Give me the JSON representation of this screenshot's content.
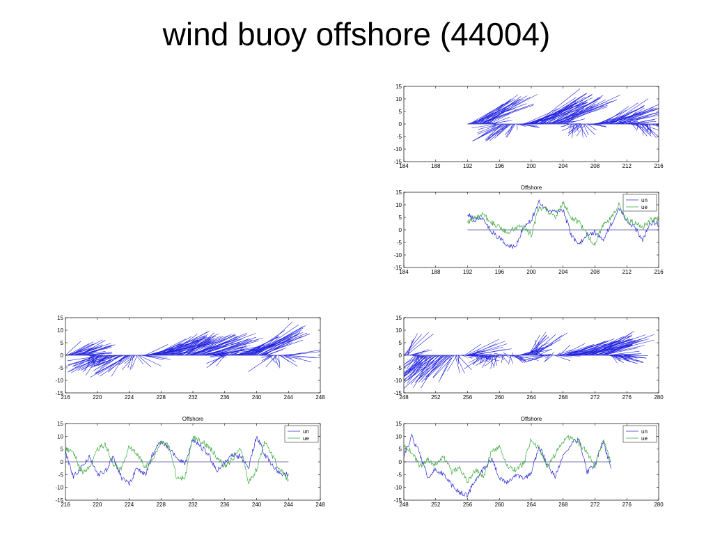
{
  "slide": {
    "title": "wind buoy offshore (44004)"
  },
  "colors": {
    "un": "#2b2bd6",
    "ue": "#3aa83a",
    "stick": "#1f1fe0",
    "axis": "#000000",
    "zero": "#4a4a9a"
  },
  "chart_data": [
    {
      "id": "stick-184-216",
      "type": "line",
      "subtype": "wind-stick",
      "title": "",
      "xlim": [
        184,
        216
      ],
      "ylim": [
        -15,
        15
      ],
      "xticks": [
        184,
        188,
        192,
        196,
        200,
        204,
        208,
        212,
        216
      ],
      "yticks": [
        15,
        10,
        5,
        0,
        -5,
        -10,
        -15
      ],
      "data_range": [
        192,
        216
      ],
      "anchors": [
        [
          192,
          8,
          10
        ],
        [
          194,
          10,
          10
        ],
        [
          196,
          -4,
          -6
        ],
        [
          197.5,
          -7,
          -5
        ],
        [
          199,
          4,
          10
        ],
        [
          200.5,
          12,
          12
        ],
        [
          202,
          8,
          10
        ],
        [
          203.5,
          10,
          12
        ],
        [
          205,
          -3,
          -2
        ],
        [
          206.5,
          -4,
          0
        ],
        [
          208,
          2,
          5
        ],
        [
          210,
          8,
          10
        ],
        [
          212,
          1,
          4
        ],
        [
          214,
          -5,
          2
        ],
        [
          216,
          1,
          3
        ]
      ]
    },
    {
      "id": "series-184-216",
      "type": "line",
      "title": "Offshore",
      "xlim": [
        184,
        216
      ],
      "ylim": [
        -15,
        15
      ],
      "xticks": [
        184,
        188,
        192,
        196,
        200,
        204,
        208,
        212,
        216
      ],
      "yticks": [
        15,
        10,
        5,
        0,
        -5,
        -10,
        -15
      ],
      "legend": {
        "position": "top-right",
        "entries": [
          "un",
          "ue"
        ]
      },
      "data_range": [
        192,
        216
      ],
      "series": [
        {
          "name": "un",
          "color_key": "un",
          "points": [
            [
              192,
              6
            ],
            [
              193,
              4
            ],
            [
              194,
              5
            ],
            [
              195,
              -1
            ],
            [
              196,
              -3
            ],
            [
              197,
              -6
            ],
            [
              198,
              -7
            ],
            [
              199,
              1
            ],
            [
              200,
              4
            ],
            [
              201,
              11
            ],
            [
              202,
              8
            ],
            [
              203,
              7
            ],
            [
              204,
              8
            ],
            [
              205,
              -2
            ],
            [
              206,
              -6
            ],
            [
              207,
              -2
            ],
            [
              208,
              -1
            ],
            [
              209,
              -4
            ],
            [
              210,
              2
            ],
            [
              211,
              9
            ],
            [
              212,
              4
            ],
            [
              213,
              1
            ],
            [
              214,
              -4
            ],
            [
              215,
              3
            ],
            [
              216,
              2
            ]
          ]
        },
        {
          "name": "ue",
          "color_key": "ue",
          "points": [
            [
              192,
              3
            ],
            [
              193,
              5
            ],
            [
              194,
              6
            ],
            [
              195,
              3
            ],
            [
              196,
              1
            ],
            [
              197,
              -1
            ],
            [
              198,
              1
            ],
            [
              199,
              1
            ],
            [
              200,
              -2
            ],
            [
              201,
              9
            ],
            [
              202,
              8
            ],
            [
              203,
              5
            ],
            [
              204,
              11
            ],
            [
              205,
              5
            ],
            [
              206,
              3
            ],
            [
              207,
              -2
            ],
            [
              208,
              -6
            ],
            [
              209,
              2
            ],
            [
              210,
              5
            ],
            [
              211,
              10
            ],
            [
              212,
              4
            ],
            [
              213,
              3
            ],
            [
              214,
              1
            ],
            [
              215,
              4
            ],
            [
              216,
              4
            ]
          ]
        }
      ]
    },
    {
      "id": "stick-216-248",
      "type": "line",
      "subtype": "wind-stick",
      "title": "",
      "xlim": [
        216,
        248
      ],
      "ylim": [
        -15,
        15
      ],
      "xticks": [
        216,
        220,
        224,
        228,
        232,
        236,
        240,
        244,
        248
      ],
      "yticks": [
        15,
        10,
        5,
        0,
        -5,
        -10,
        -15
      ],
      "data_range": [
        216,
        244
      ],
      "anchors": [
        [
          216,
          5,
          4
        ],
        [
          218,
          4,
          8
        ],
        [
          220,
          -6,
          -6
        ],
        [
          222,
          -3,
          -5
        ],
        [
          224,
          -8,
          -6
        ],
        [
          226,
          2,
          8
        ],
        [
          228,
          8,
          10
        ],
        [
          230,
          6,
          8
        ],
        [
          232,
          7,
          10
        ],
        [
          234,
          5,
          12
        ],
        [
          236,
          -3,
          -4
        ],
        [
          238,
          6,
          10
        ],
        [
          240,
          11,
          10
        ],
        [
          242,
          -5,
          -3
        ],
        [
          244,
          1,
          8
        ]
      ]
    },
    {
      "id": "series-216-248",
      "type": "line",
      "title": "Offshore",
      "xlim": [
        216,
        248
      ],
      "ylim": [
        -15,
        15
      ],
      "xticks": [
        216,
        220,
        224,
        228,
        232,
        236,
        240,
        244,
        248
      ],
      "yticks": [
        15,
        10,
        5,
        0,
        -5,
        -10,
        -15
      ],
      "legend": {
        "position": "top-right",
        "entries": [
          "un",
          "ue"
        ]
      },
      "data_range": [
        216,
        244
      ],
      "series": [
        {
          "name": "un",
          "color_key": "un",
          "points": [
            [
              216,
              4
            ],
            [
              217,
              -6
            ],
            [
              218,
              -2
            ],
            [
              219,
              2
            ],
            [
              220,
              -5
            ],
            [
              221,
              -4
            ],
            [
              222,
              2
            ],
            [
              223,
              -6
            ],
            [
              224,
              -9
            ],
            [
              225,
              -2
            ],
            [
              226,
              -5
            ],
            [
              227,
              3
            ],
            [
              228,
              8
            ],
            [
              229,
              5
            ],
            [
              230,
              2
            ],
            [
              231,
              -1
            ],
            [
              232,
              9
            ],
            [
              233,
              6
            ],
            [
              234,
              3
            ],
            [
              235,
              -4
            ],
            [
              236,
              0
            ],
            [
              237,
              3
            ],
            [
              238,
              2
            ],
            [
              239,
              -2
            ],
            [
              240,
              10
            ],
            [
              241,
              3
            ],
            [
              242,
              -1
            ],
            [
              243,
              -5
            ],
            [
              244,
              -5
            ]
          ]
        },
        {
          "name": "ue",
          "color_key": "ue",
          "points": [
            [
              216,
              5
            ],
            [
              217,
              4
            ],
            [
              218,
              -4
            ],
            [
              219,
              -2
            ],
            [
              220,
              5
            ],
            [
              221,
              7
            ],
            [
              222,
              -1
            ],
            [
              223,
              -3
            ],
            [
              224,
              6
            ],
            [
              225,
              3
            ],
            [
              226,
              -2
            ],
            [
              227,
              1
            ],
            [
              228,
              8
            ],
            [
              229,
              6
            ],
            [
              230,
              -7
            ],
            [
              231,
              -6
            ],
            [
              232,
              10
            ],
            [
              233,
              8
            ],
            [
              234,
              6
            ],
            [
              235,
              2
            ],
            [
              236,
              -2
            ],
            [
              237,
              1
            ],
            [
              238,
              6
            ],
            [
              239,
              -8
            ],
            [
              240,
              -3
            ],
            [
              241,
              8
            ],
            [
              242,
              2
            ],
            [
              243,
              -3
            ],
            [
              244,
              -7
            ]
          ]
        }
      ]
    },
    {
      "id": "stick-248-280",
      "type": "line",
      "subtype": "wind-stick",
      "title": "",
      "xlim": [
        248,
        280
      ],
      "ylim": [
        -15,
        15
      ],
      "xticks": [
        248,
        252,
        256,
        260,
        264,
        268,
        272,
        276,
        280
      ],
      "yticks": [
        15,
        10,
        5,
        0,
        -5,
        -10,
        -15
      ],
      "data_range": [
        248,
        276
      ],
      "anchors": [
        [
          248,
          9,
          6
        ],
        [
          250,
          -7,
          -3
        ],
        [
          252,
          -12,
          -8
        ],
        [
          254,
          -9,
          -4
        ],
        [
          256,
          5,
          8
        ],
        [
          258,
          -5,
          -2
        ],
        [
          260,
          -2,
          -1
        ],
        [
          262,
          -1,
          2
        ],
        [
          264,
          8,
          6
        ],
        [
          266,
          -3,
          -5
        ],
        [
          268,
          4,
          8
        ],
        [
          270,
          6,
          10
        ],
        [
          272,
          8,
          12
        ],
        [
          274,
          -2,
          4
        ],
        [
          276,
          0,
          3
        ]
      ]
    },
    {
      "id": "series-248-280",
      "type": "line",
      "title": "Offshore",
      "xlim": [
        248,
        280
      ],
      "ylim": [
        -15,
        15
      ],
      "xticks": [
        248,
        252,
        256,
        260,
        264,
        268,
        272,
        276,
        280
      ],
      "yticks": [
        15,
        10,
        5,
        0,
        -5,
        -10,
        -15
      ],
      "legend": {
        "position": "top-right",
        "entries": [
          "un",
          "ue"
        ]
      },
      "data_range": [
        248,
        274
      ],
      "series": [
        {
          "name": "un",
          "color_key": "un",
          "points": [
            [
              248,
              2
            ],
            [
              249,
              10
            ],
            [
              250,
              3
            ],
            [
              251,
              -6
            ],
            [
              252,
              -3
            ],
            [
              253,
              -5
            ],
            [
              254,
              -9
            ],
            [
              255,
              -12
            ],
            [
              256,
              -13
            ],
            [
              257,
              -7
            ],
            [
              258,
              -3
            ],
            [
              259,
              1
            ],
            [
              260,
              -6
            ],
            [
              261,
              -8
            ],
            [
              262,
              -5
            ],
            [
              263,
              -7
            ],
            [
              264,
              -4
            ],
            [
              265,
              6
            ],
            [
              266,
              -1
            ],
            [
              267,
              -6
            ],
            [
              268,
              3
            ],
            [
              269,
              7
            ],
            [
              270,
              9
            ],
            [
              271,
              -4
            ],
            [
              272,
              -1
            ],
            [
              273,
              8
            ],
            [
              274,
              -2
            ]
          ]
        },
        {
          "name": "ue",
          "color_key": "ue",
          "points": [
            [
              248,
              6
            ],
            [
              249,
              4
            ],
            [
              250,
              -2
            ],
            [
              251,
              1
            ],
            [
              252,
              -1
            ],
            [
              253,
              2
            ],
            [
              254,
              -4
            ],
            [
              255,
              -2
            ],
            [
              256,
              -8
            ],
            [
              257,
              -3
            ],
            [
              258,
              -6
            ],
            [
              259,
              4
            ],
            [
              260,
              6
            ],
            [
              261,
              -2
            ],
            [
              262,
              -3
            ],
            [
              263,
              -1
            ],
            [
              264,
              9
            ],
            [
              265,
              5
            ],
            [
              266,
              -2
            ],
            [
              267,
              3
            ],
            [
              268,
              8
            ],
            [
              269,
              10
            ],
            [
              270,
              7
            ],
            [
              271,
              4
            ],
            [
              272,
              -2
            ],
            [
              273,
              9
            ],
            [
              274,
              0
            ]
          ]
        }
      ]
    }
  ]
}
